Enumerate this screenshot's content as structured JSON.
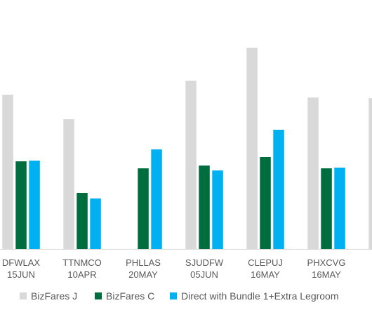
{
  "chart_data": {
    "type": "bar",
    "categories": [
      [
        "DFWLAX",
        "15JUN"
      ],
      [
        "TTNMCO",
        "10APR"
      ],
      [
        "PHLLAS",
        "20MAY"
      ],
      [
        "SJUDFW",
        "05JUN"
      ],
      [
        "CLEPUJ",
        "16MAY"
      ],
      [
        "PHXCVG",
        "16MAY"
      ],
      [
        "",
        ""
      ]
    ],
    "series": [
      {
        "name": "BizFares J",
        "color": "#d9d9d9",
        "values": [
          220,
          185,
          null,
          240,
          287,
          216,
          215
        ]
      },
      {
        "name": "BizFares C",
        "color": "#006d3f",
        "values": [
          125,
          80,
          115,
          119,
          131,
          115,
          null
        ]
      },
      {
        "name": "Direct with Bundle 1+Extra Legroom",
        "color": "#00b0f0",
        "values": [
          126,
          72,
          142,
          112,
          170,
          116,
          null
        ]
      }
    ],
    "ylim": [
      0,
      287
    ],
    "grid": false,
    "legend_position": "bottom"
  }
}
